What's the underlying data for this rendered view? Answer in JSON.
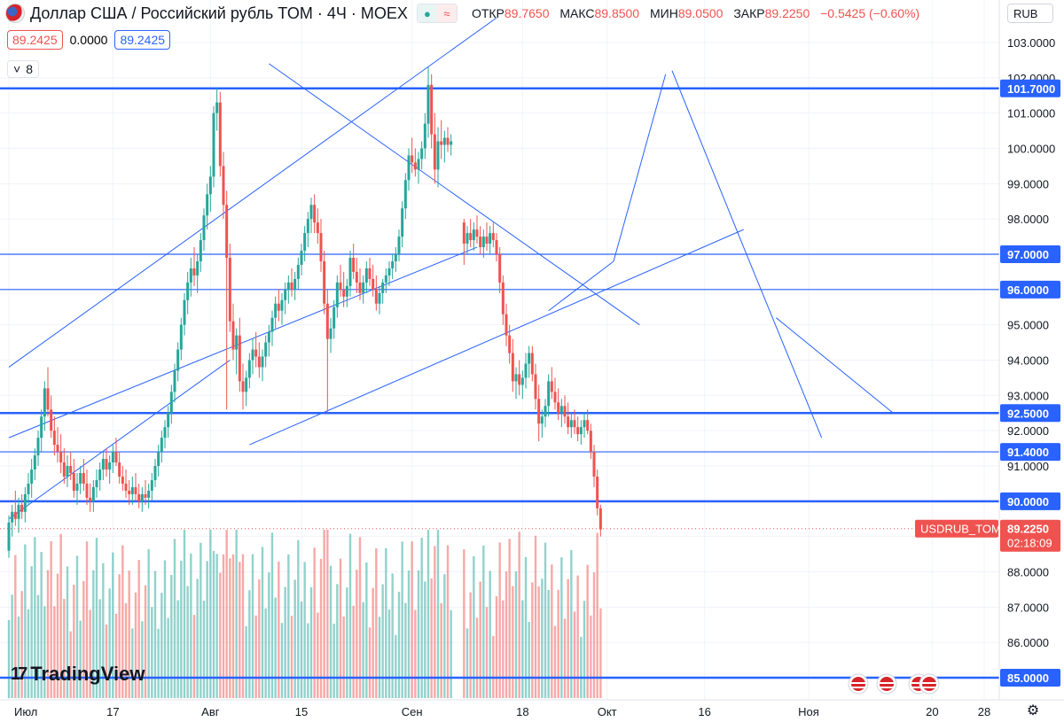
{
  "header": {
    "title": "Доллар США / Российский рубль TOM · 4Ч · MOEX",
    "dot_glyph": "●",
    "wave_glyph": "≈",
    "ohlc": [
      {
        "label": "ОТКР",
        "value": "89.7650"
      },
      {
        "label": "МАКС",
        "value": "89.8500"
      },
      {
        "label": "МИН",
        "value": "89.0500"
      },
      {
        "label": "ЗАКР",
        "value": "89.2250"
      },
      {
        "label": "",
        "value": "−0.5425 (−0.60%)"
      }
    ],
    "bid": "89.2425",
    "spread": "0.0000",
    "ask": "89.2425",
    "indicator_count": "8",
    "chevron": "˅"
  },
  "currency": "RUB",
  "logo_text": "TradingView",
  "logo_mark": "17",
  "settings_icon": "⚙",
  "colors": {
    "up": "#26a69a",
    "down": "#ef5350",
    "line": "#2962ff",
    "last": "#ef5350"
  },
  "chart_data": {
    "type": "candlestick",
    "symbol_label": "USDRUB_TOM",
    "last_price": "89.2250",
    "countdown": "02:18:09",
    "y_ticks": [
      "103.0000",
      "102.0000",
      "101.0000",
      "100.0000",
      "99.0000",
      "98.0000",
      "97.0000",
      "96.0000",
      "95.0000",
      "94.0000",
      "93.0000",
      "92.0000",
      "91.0000",
      "90.0000",
      "89.0000",
      "88.0000",
      "87.0000",
      "86.0000",
      "85.0000"
    ],
    "x_ticks": [
      {
        "label": "Июл",
        "day": 0
      },
      {
        "label": "17",
        "day": 16
      },
      {
        "label": "Авг",
        "day": 31
      },
      {
        "label": "15",
        "day": 45
      },
      {
        "label": "Сен",
        "day": 62
      },
      {
        "label": "18",
        "day": 79
      },
      {
        "label": "Окт",
        "day": 92
      },
      {
        "label": "16",
        "day": 107
      },
      {
        "label": "Ноя",
        "day": 123
      },
      {
        "label": "20",
        "day": 142
      },
      {
        "label": "28",
        "day": 150
      }
    ],
    "levels": [
      {
        "price": 101.7,
        "label": "101.7000",
        "bold": true
      },
      {
        "price": 97.0,
        "label": "97.0000",
        "bold": false
      },
      {
        "price": 96.0,
        "label": "96.0000",
        "bold": false
      },
      {
        "price": 92.5,
        "label": "92.5000",
        "bold": true
      },
      {
        "price": 91.4,
        "label": "91.4000",
        "bold": false
      },
      {
        "price": 90.0,
        "label": "90.0000",
        "bold": true
      },
      {
        "price": 85.0,
        "label": "85.0000",
        "bold": true
      }
    ],
    "trendlines": [
      {
        "x1": 0,
        "y1": 93.8,
        "x2": 75,
        "y2": 103.7
      },
      {
        "x1": 40,
        "y1": 102.4,
        "x2": 97,
        "y2": 95.0
      },
      {
        "x1": 0,
        "y1": 91.8,
        "x2": 72,
        "y2": 97.2
      },
      {
        "x1": 37,
        "y1": 91.6,
        "x2": 113,
        "y2": 97.7
      },
      {
        "x1": 0,
        "y1": 89.5,
        "x2": 34,
        "y2": 94.0
      },
      {
        "x1": 83,
        "y1": 95.4,
        "x2": 93,
        "y2": 96.8
      },
      {
        "x1": 93,
        "y1": 96.8,
        "x2": 101,
        "y2": 102.1
      },
      {
        "x1": 102,
        "y1": 102.2,
        "x2": 113,
        "y2": 97.2
      },
      {
        "x1": 113,
        "y1": 97.2,
        "x2": 125,
        "y2": 91.8
      },
      {
        "x1": 118,
        "y1": 95.2,
        "x2": 136,
        "y2": 92.5
      }
    ],
    "candles": [
      [
        0,
        88.6,
        89.6,
        88.4,
        89.4
      ],
      [
        0.5,
        89.4,
        89.9,
        89.0,
        89.7
      ],
      [
        1,
        89.7,
        90.3,
        89.3,
        89.5
      ],
      [
        1.5,
        89.5,
        90.1,
        89.1,
        89.9
      ],
      [
        2,
        89.9,
        90.2,
        89.5,
        89.7
      ],
      [
        2.5,
        89.7,
        90.4,
        89.4,
        90.2
      ],
      [
        3,
        90.2,
        90.8,
        89.9,
        90.5
      ],
      [
        3.5,
        90.5,
        91.2,
        90.1,
        90.9
      ],
      [
        4,
        90.9,
        91.5,
        90.6,
        91.3
      ],
      [
        4.5,
        91.3,
        92.0,
        91.0,
        91.8
      ],
      [
        5,
        91.8,
        92.6,
        91.4,
        92.4
      ],
      [
        5.5,
        92.4,
        93.4,
        92.0,
        93.2
      ],
      [
        6,
        93.2,
        93.8,
        92.4,
        92.6
      ],
      [
        6.5,
        92.6,
        93.0,
        91.8,
        92.0
      ],
      [
        7,
        92.0,
        92.4,
        91.3,
        91.6
      ],
      [
        7.5,
        91.6,
        92.1,
        91.1,
        91.4
      ],
      [
        8,
        91.4,
        91.9,
        90.8,
        91.1
      ],
      [
        8.5,
        91.1,
        91.5,
        90.5,
        90.7
      ],
      [
        9,
        90.7,
        91.3,
        90.4,
        91.0
      ],
      [
        9.5,
        91.0,
        91.4,
        90.6,
        90.8
      ],
      [
        10,
        90.8,
        91.2,
        90.1,
        90.3
      ],
      [
        10.5,
        90.3,
        90.8,
        89.9,
        90.5
      ],
      [
        11,
        90.5,
        91.0,
        90.2,
        90.8
      ],
      [
        11.5,
        90.8,
        91.2,
        90.3,
        90.5
      ],
      [
        12,
        90.5,
        90.9,
        89.9,
        90.1
      ],
      [
        12.5,
        90.1,
        90.5,
        89.7,
        90.0
      ],
      [
        13,
        90.0,
        90.6,
        89.7,
        90.4
      ],
      [
        13.5,
        90.4,
        90.9,
        90.1,
        90.6
      ],
      [
        14,
        90.6,
        91.1,
        90.3,
        90.9
      ],
      [
        14.5,
        90.9,
        91.4,
        90.6,
        91.2
      ],
      [
        15,
        91.2,
        91.5,
        90.7,
        90.9
      ],
      [
        15.5,
        90.9,
        91.3,
        90.5,
        91.1
      ],
      [
        16,
        91.1,
        91.6,
        90.8,
        91.4
      ],
      [
        16.5,
        91.4,
        91.8,
        91.0,
        91.1
      ],
      [
        17,
        91.1,
        91.4,
        90.5,
        90.7
      ],
      [
        17.5,
        90.7,
        91.0,
        90.3,
        90.5
      ],
      [
        18,
        90.5,
        90.9,
        90.1,
        90.3
      ],
      [
        18.5,
        90.3,
        90.6,
        89.9,
        90.2
      ],
      [
        19,
        90.2,
        90.7,
        89.9,
        90.4
      ],
      [
        19.5,
        90.4,
        90.8,
        90.0,
        90.2
      ],
      [
        20,
        90.2,
        90.5,
        89.8,
        90.0
      ],
      [
        20.5,
        90.0,
        90.4,
        89.7,
        90.2
      ],
      [
        21,
        90.2,
        90.6,
        89.9,
        90.1
      ],
      [
        21.5,
        90.1,
        90.5,
        89.8,
        90.3
      ],
      [
        22,
        90.3,
        90.8,
        90.0,
        90.6
      ],
      [
        22.5,
        90.6,
        91.2,
        90.4,
        91.0
      ],
      [
        23,
        91.0,
        91.6,
        90.7,
        91.4
      ],
      [
        23.5,
        91.4,
        92.0,
        91.1,
        91.8
      ],
      [
        24,
        91.8,
        92.3,
        91.5,
        92.1
      ],
      [
        24.5,
        92.1,
        92.7,
        91.8,
        92.5
      ],
      [
        25,
        92.5,
        93.3,
        92.2,
        93.1
      ],
      [
        25.5,
        93.1,
        93.9,
        92.8,
        93.7
      ],
      [
        26,
        93.7,
        94.5,
        93.4,
        94.3
      ],
      [
        26.5,
        94.3,
        95.2,
        94.0,
        95.0
      ],
      [
        27,
        95.0,
        95.9,
        94.7,
        95.7
      ],
      [
        27.5,
        95.7,
        96.5,
        95.3,
        96.2
      ],
      [
        28,
        96.2,
        96.9,
        95.8,
        96.6
      ],
      [
        28.5,
        96.6,
        97.2,
        96.1,
        96.4
      ],
      [
        29,
        96.4,
        97.0,
        95.9,
        96.8
      ],
      [
        29.5,
        96.8,
        97.6,
        96.5,
        97.4
      ],
      [
        30,
        97.4,
        98.3,
        97.1,
        98.1
      ],
      [
        30.5,
        98.1,
        99.0,
        97.7,
        98.7
      ],
      [
        31,
        98.7,
        99.5,
        98.2,
        99.2
      ],
      [
        31.5,
        99.2,
        101.2,
        98.9,
        101.0
      ],
      [
        32,
        101.0,
        101.7,
        100.5,
        101.3
      ],
      [
        32.5,
        101.3,
        101.6,
        99.2,
        99.5
      ],
      [
        33,
        99.5,
        99.9,
        98.0,
        98.4
      ],
      [
        33.5,
        98.4,
        98.8,
        92.6,
        96.9
      ],
      [
        34,
        96.9,
        97.3,
        94.8,
        95.1
      ],
      [
        34.5,
        95.1,
        95.6,
        94.0,
        94.3
      ],
      [
        35,
        94.3,
        94.9,
        93.6,
        94.7
      ],
      [
        35.5,
        94.7,
        95.2,
        93.1,
        93.4
      ],
      [
        36,
        93.4,
        93.9,
        92.6,
        93.1
      ],
      [
        36.5,
        93.1,
        93.7,
        92.7,
        93.5
      ],
      [
        37,
        93.5,
        94.2,
        93.2,
        94.0
      ],
      [
        37.5,
        94.0,
        94.6,
        93.6,
        94.3
      ],
      [
        38,
        94.3,
        94.8,
        93.8,
        94.1
      ],
      [
        38.5,
        94.1,
        94.5,
        93.5,
        93.8
      ],
      [
        39,
        93.8,
        94.3,
        93.4,
        94.1
      ],
      [
        39.5,
        94.1,
        94.7,
        93.8,
        94.5
      ],
      [
        40,
        94.5,
        95.0,
        94.1,
        94.8
      ],
      [
        40.5,
        94.8,
        95.4,
        94.4,
        95.2
      ],
      [
        41,
        95.2,
        95.8,
        94.9,
        95.6
      ],
      [
        41.5,
        95.6,
        96.0,
        95.1,
        95.4
      ],
      [
        42,
        95.4,
        95.9,
        95.0,
        95.7
      ],
      [
        42.5,
        95.7,
        96.2,
        95.3,
        96.0
      ],
      [
        43,
        96.0,
        96.4,
        95.6,
        96.2
      ],
      [
        43.5,
        96.2,
        96.6,
        95.8,
        96.0
      ],
      [
        44,
        96.0,
        96.5,
        95.7,
        96.3
      ],
      [
        44.5,
        96.3,
        96.9,
        96.0,
        96.7
      ],
      [
        45,
        96.7,
        97.3,
        96.4,
        97.1
      ],
      [
        45.5,
        97.1,
        97.8,
        96.8,
        97.6
      ],
      [
        46,
        97.6,
        98.2,
        97.2,
        98.0
      ],
      [
        46.5,
        98.0,
        98.6,
        97.6,
        98.4
      ],
      [
        47,
        98.4,
        98.7,
        97.6,
        97.9
      ],
      [
        47.5,
        97.9,
        98.3,
        97.3,
        97.6
      ],
      [
        48,
        97.6,
        98.0,
        96.5,
        96.8
      ],
      [
        48.5,
        96.8,
        97.1,
        95.3,
        95.6
      ],
      [
        49,
        95.6,
        96.0,
        92.5,
        94.6
      ],
      [
        49.5,
        94.6,
        95.2,
        94.2,
        94.9
      ],
      [
        50,
        94.9,
        95.7,
        94.6,
        95.5
      ],
      [
        50.5,
        95.5,
        96.4,
        95.2,
        96.2
      ],
      [
        51,
        96.2,
        96.7,
        95.8,
        96.0
      ],
      [
        51.5,
        96.0,
        96.5,
        95.5,
        95.8
      ],
      [
        52,
        95.8,
        96.3,
        95.5,
        96.1
      ],
      [
        52.5,
        96.1,
        97.1,
        95.8,
        96.9
      ],
      [
        53,
        96.9,
        97.3,
        96.3,
        96.5
      ],
      [
        53.5,
        96.5,
        96.9,
        95.9,
        96.2
      ],
      [
        54,
        96.2,
        96.6,
        95.7,
        95.9
      ],
      [
        54.5,
        95.9,
        96.4,
        95.6,
        96.2
      ],
      [
        55,
        96.2,
        96.8,
        95.9,
        96.6
      ],
      [
        55.5,
        96.6,
        96.9,
        96.1,
        96.3
      ],
      [
        56,
        96.3,
        96.7,
        95.8,
        96.0
      ],
      [
        56.5,
        96.0,
        96.4,
        95.4,
        95.6
      ],
      [
        57,
        95.6,
        96.1,
        95.3,
        95.9
      ],
      [
        57.5,
        95.9,
        96.3,
        95.6,
        96.2
      ],
      [
        58,
        96.2,
        96.6,
        95.9,
        96.4
      ],
      [
        58.5,
        96.4,
        96.8,
        96.1,
        96.6
      ],
      [
        59,
        96.6,
        97.0,
        96.3,
        96.8
      ],
      [
        59.5,
        96.8,
        97.2,
        96.5,
        97.0
      ],
      [
        60,
        97.0,
        97.7,
        96.8,
        97.5
      ],
      [
        60.5,
        97.5,
        98.5,
        97.2,
        98.3
      ],
      [
        61,
        98.3,
        99.3,
        98.0,
        99.1
      ],
      [
        61.5,
        99.1,
        100.0,
        98.8,
        99.8
      ],
      [
        62,
        99.8,
        100.3,
        99.3,
        99.6
      ],
      [
        62.5,
        99.6,
        100.0,
        99.2,
        99.4
      ],
      [
        63,
        99.4,
        99.9,
        99.0,
        99.7
      ],
      [
        63.5,
        99.7,
        100.2,
        99.4,
        100.0
      ],
      [
        64,
        100.0,
        101.0,
        99.7,
        100.7
      ],
      [
        64.5,
        100.7,
        102.3,
        100.3,
        101.8
      ],
      [
        65,
        101.8,
        102.1,
        100.0,
        100.4
      ],
      [
        65.5,
        100.4,
        101.0,
        99.0,
        99.4
      ],
      [
        66,
        99.4,
        100.6,
        98.9,
        100.2
      ],
      [
        66.5,
        100.2,
        100.8,
        99.7,
        100.1
      ],
      [
        67,
        100.1,
        100.5,
        99.6,
        100.3
      ],
      [
        67.5,
        100.3,
        100.6,
        99.9,
        100.1
      ],
      [
        68,
        100.1,
        100.4,
        99.8,
        100.2
      ],
      [
        70,
        97.9,
        98.0,
        96.7,
        97.3
      ],
      [
        70.5,
        97.3,
        97.8,
        97.0,
        97.6
      ],
      [
        71,
        97.6,
        98.0,
        97.2,
        97.4
      ],
      [
        71.5,
        97.4,
        97.9,
        97.1,
        97.7
      ],
      [
        72,
        97.7,
        98.1,
        97.3,
        97.5
      ],
      [
        72.5,
        97.5,
        97.8,
        97.0,
        97.2
      ],
      [
        73,
        97.2,
        97.7,
        96.9,
        97.5
      ],
      [
        73.5,
        97.5,
        97.9,
        97.1,
        97.3
      ],
      [
        74,
        97.3,
        97.8,
        97.0,
        97.6
      ],
      [
        74.5,
        97.6,
        97.9,
        97.2,
        97.4
      ],
      [
        75,
        97.4,
        97.6,
        96.8,
        97.0
      ],
      [
        75.5,
        97.0,
        97.2,
        95.9,
        96.2
      ],
      [
        76,
        96.2,
        96.4,
        95.0,
        95.3
      ],
      [
        76.5,
        95.3,
        95.6,
        94.4,
        94.7
      ],
      [
        77,
        94.7,
        95.0,
        93.9,
        94.2
      ],
      [
        77.5,
        94.2,
        94.6,
        93.1,
        93.4
      ],
      [
        78,
        93.4,
        93.8,
        92.9,
        93.6
      ],
      [
        78.5,
        93.6,
        94.0,
        93.0,
        93.3
      ],
      [
        79,
        93.3,
        93.7,
        92.9,
        93.5
      ],
      [
        79.5,
        93.5,
        94.2,
        93.2,
        93.9
      ],
      [
        80,
        93.9,
        94.4,
        93.5,
        94.2
      ],
      [
        80.5,
        94.2,
        94.4,
        93.4,
        93.6
      ],
      [
        81,
        93.6,
        93.9,
        92.6,
        92.9
      ],
      [
        81.5,
        92.9,
        93.3,
        91.7,
        92.2
      ],
      [
        82,
        92.2,
        92.6,
        91.8,
        92.4
      ],
      [
        82.5,
        92.4,
        92.9,
        92.1,
        92.7
      ],
      [
        83,
        92.7,
        93.6,
        92.4,
        93.4
      ],
      [
        83.5,
        93.4,
        93.8,
        92.9,
        93.1
      ],
      [
        84,
        93.1,
        93.5,
        92.6,
        92.8
      ],
      [
        84.5,
        92.8,
        93.2,
        92.3,
        92.5
      ],
      [
        85,
        92.5,
        92.9,
        92.1,
        92.7
      ],
      [
        85.5,
        92.7,
        93.0,
        92.2,
        92.4
      ],
      [
        86,
        92.4,
        92.8,
        91.9,
        92.1
      ],
      [
        86.5,
        92.1,
        92.5,
        91.8,
        92.3
      ],
      [
        87,
        92.3,
        92.6,
        91.9,
        92.1
      ],
      [
        87.5,
        92.1,
        92.4,
        91.7,
        91.9
      ],
      [
        88,
        91.9,
        92.3,
        91.6,
        92.1
      ],
      [
        88.5,
        92.1,
        92.5,
        91.8,
        92.3
      ],
      [
        89,
        92.3,
        92.6,
        91.9,
        92.0
      ],
      [
        89.5,
        92.0,
        92.2,
        91.2,
        91.4
      ],
      [
        90,
        91.4,
        91.6,
        90.4,
        90.7
      ],
      [
        90.5,
        90.7,
        90.9,
        89.6,
        89.8
      ],
      [
        91,
        89.8,
        89.9,
        89.0,
        89.2
      ]
    ],
    "volume_max": 100
  }
}
